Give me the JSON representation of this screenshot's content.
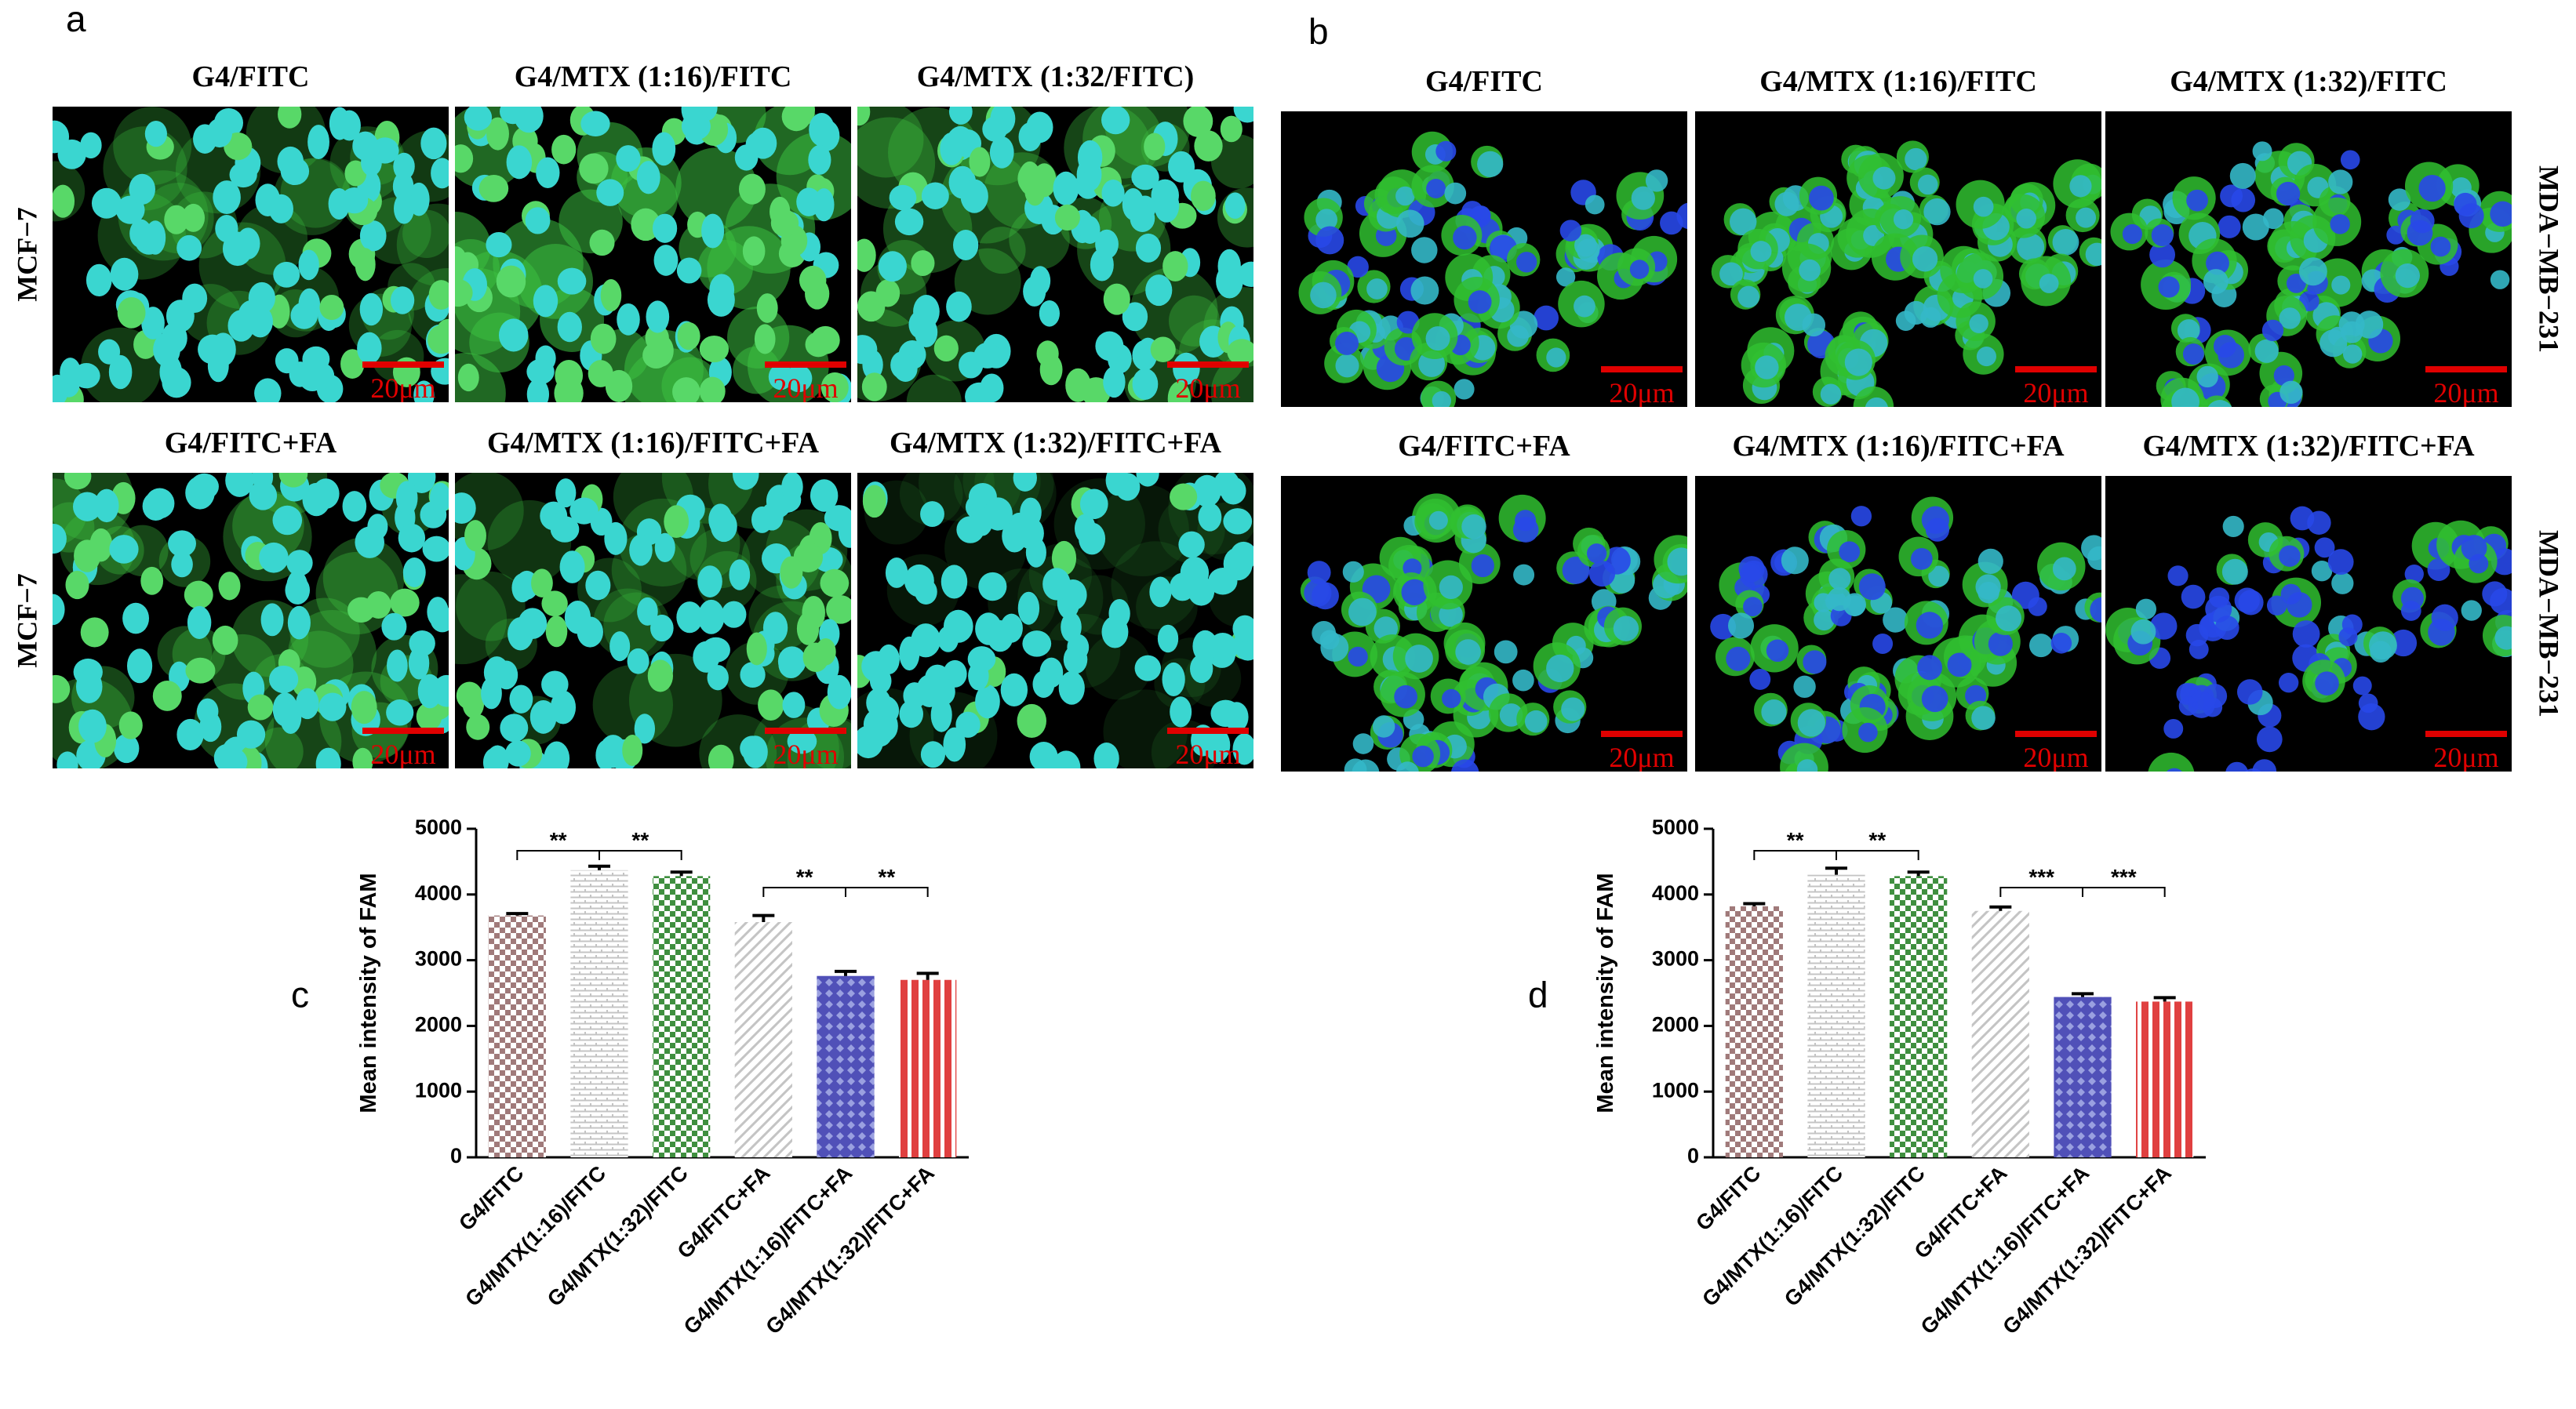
{
  "panel_a": {
    "label": "a",
    "rows": [
      {
        "row_label": "MCF−7",
        "images": [
          {
            "title": "G4/FITC",
            "scale_bar": "20μm"
          },
          {
            "title": "G4/MTX (1:16)/FITC",
            "scale_bar": "20μm"
          },
          {
            "title": "G4/MTX (1:32/FITC)",
            "scale_bar": "20μm"
          }
        ]
      },
      {
        "row_label": "MCF−7",
        "images": [
          {
            "title": "G4/FITC+FA",
            "scale_bar": "20μm"
          },
          {
            "title": "G4/MTX (1:16)/FITC+FA",
            "scale_bar": "20μm"
          },
          {
            "title": "G4/MTX (1:32)/FITC+FA",
            "scale_bar": "20μm"
          }
        ]
      }
    ]
  },
  "panel_b": {
    "label": "b",
    "rows": [
      {
        "row_label": "MDA−MB−231",
        "images": [
          {
            "title": "G4/FITC",
            "scale_bar": "20μm"
          },
          {
            "title": "G4/MTX (1:16)/FITC",
            "scale_bar": "20μm"
          },
          {
            "title": "G4/MTX (1:32)/FITC",
            "scale_bar": "20μm"
          }
        ]
      },
      {
        "row_label": "MDA−MB−231",
        "images": [
          {
            "title": "G4/FITC+FA",
            "scale_bar": "20μm"
          },
          {
            "title": "G4/MTX (1:16)/FITC+FA",
            "scale_bar": "20μm"
          },
          {
            "title": "G4/MTX (1:32)/FITC+FA",
            "scale_bar": "20μm"
          }
        ]
      }
    ]
  },
  "chart_data": [
    {
      "type": "bar",
      "panel_label": "c",
      "y_label": "Mean intensity of FAM",
      "categories": [
        "G4/FITC",
        "G4/MTX(1:16)/FITC",
        "G4/MTX(1:32)/FITC",
        "G4/FITC+FA",
        "G4/MTX(1:16)/FITC+FA",
        "G4/MTX(1:32)/FITC+FA"
      ],
      "values": [
        3680,
        4370,
        4280,
        3580,
        2760,
        2700
      ],
      "errors": [
        30,
        60,
        60,
        100,
        70,
        100
      ],
      "colors": [
        "#a07a7a",
        "#c4c4c4",
        "#3f8f3f",
        "#c4c4c4",
        "#5050b8",
        "#e04040"
      ],
      "ylim": [
        0,
        5000
      ],
      "yticks": [
        0,
        1000,
        2000,
        3000,
        4000,
        5000
      ],
      "significance": [
        "**",
        "**",
        "**",
        "**"
      ]
    },
    {
      "type": "bar",
      "panel_label": "d",
      "y_label": "Mean intensity of FAM",
      "categories": [
        "G4/FITC",
        "G4/MTX(1:16)/FITC",
        "G4/MTX(1:32)/FITC",
        "G4/FITC+FA",
        "G4/MTX(1:16)/FITC+FA",
        "G4/MTX(1:32)/FITC+FA"
      ],
      "values": [
        3820,
        4300,
        4280,
        3750,
        2440,
        2370
      ],
      "errors": [
        40,
        100,
        60,
        60,
        50,
        60
      ],
      "colors": [
        "#a07a7a",
        "#c4c4c4",
        "#3f8f3f",
        "#c4c4c4",
        "#5050b8",
        "#e04040"
      ],
      "ylim": [
        0,
        5000
      ],
      "yticks": [
        0,
        1000,
        2000,
        3000,
        4000,
        5000
      ],
      "significance": [
        "**",
        "**",
        "***",
        "***"
      ]
    }
  ]
}
